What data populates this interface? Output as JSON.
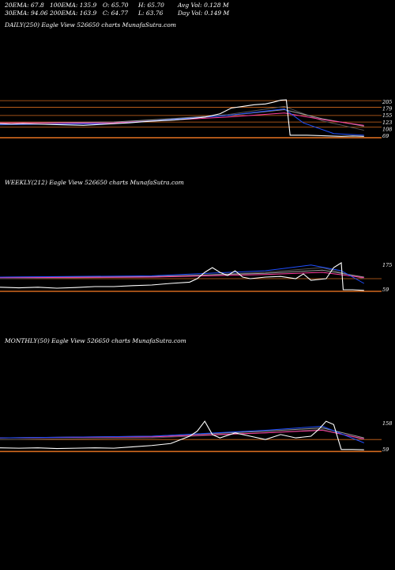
{
  "stats": {
    "row1": [
      "20EMA: 67.8",
      "100EMA: 135.9",
      "O: 65.70",
      "H: 65.70",
      "Avg Vol: 0.128  M"
    ],
    "row2": [
      "30EMA: 94.06",
      "200EMA: 163.9",
      "C: 64.77",
      "L: 63.76",
      "Day Vol: 0.149 M"
    ]
  },
  "colors": {
    "price": "#ffffff",
    "level": "#d2691e",
    "ema_blue": "#1f4fff",
    "ema_pink": "#ff3ca0",
    "ema_dark": "#555555",
    "ema_grey": "#999999"
  },
  "chart_data": [
    {
      "type": "line",
      "title": "DAILY(250) Eagle  View  526650  charts MunafaSutra.com",
      "y_labels": [
        "205",
        "179",
        "155",
        "123",
        "108",
        "69"
      ],
      "price_path": [
        [
          0,
          0.62
        ],
        [
          0.03,
          0.63
        ],
        [
          0.06,
          0.62
        ],
        [
          0.1,
          0.63
        ],
        [
          0.14,
          0.64
        ],
        [
          0.18,
          0.65
        ],
        [
          0.22,
          0.66
        ],
        [
          0.26,
          0.64
        ],
        [
          0.3,
          0.62
        ],
        [
          0.34,
          0.6
        ],
        [
          0.38,
          0.57
        ],
        [
          0.42,
          0.55
        ],
        [
          0.46,
          0.53
        ],
        [
          0.5,
          0.5
        ],
        [
          0.54,
          0.46
        ],
        [
          0.58,
          0.38
        ],
        [
          0.61,
          0.24
        ],
        [
          0.64,
          0.2
        ],
        [
          0.67,
          0.16
        ],
        [
          0.7,
          0.14
        ],
        [
          0.72,
          0.1
        ],
        [
          0.74,
          0.05
        ],
        [
          0.755,
          0.04
        ],
        [
          0.765,
          0.9
        ],
        [
          0.78,
          0.9
        ],
        [
          0.81,
          0.9
        ],
        [
          0.84,
          0.91
        ],
        [
          0.87,
          0.92
        ],
        [
          0.9,
          0.93
        ],
        [
          0.93,
          0.92
        ],
        [
          0.96,
          0.93
        ]
      ],
      "ema_lines": [
        {
          "color": "ema_dark",
          "path": [
            [
              0,
              0.65
            ],
            [
              0.3,
              0.6
            ],
            [
              0.6,
              0.4
            ],
            [
              0.75,
              0.2
            ],
            [
              0.85,
              0.55
            ],
            [
              0.96,
              0.78
            ]
          ]
        },
        {
          "color": "ema_grey",
          "path": [
            [
              0,
              0.6
            ],
            [
              0.3,
              0.58
            ],
            [
              0.6,
              0.42
            ],
            [
              0.75,
              0.28
            ],
            [
              0.85,
              0.5
            ],
            [
              0.96,
              0.68
            ]
          ]
        },
        {
          "color": "ema_pink",
          "path": [
            [
              0,
              0.6
            ],
            [
              0.3,
              0.6
            ],
            [
              0.6,
              0.46
            ],
            [
              0.75,
              0.36
            ],
            [
              0.85,
              0.52
            ],
            [
              0.96,
              0.66
            ]
          ]
        },
        {
          "color": "ema_blue",
          "path": [
            [
              0,
              0.64
            ],
            [
              0.3,
              0.62
            ],
            [
              0.6,
              0.42
            ],
            [
              0.75,
              0.26
            ],
            [
              0.8,
              0.6
            ],
            [
              0.88,
              0.86
            ],
            [
              0.96,
              0.9
            ]
          ]
        }
      ],
      "levels": [
        0.06,
        0.22,
        0.42,
        0.58,
        0.7,
        0.96
      ]
    },
    {
      "type": "line",
      "title": "WEEKLY(212) Eagle  View  526650  charts MunafaSutra.com",
      "y_labels": [
        "175",
        "59"
      ],
      "price_path": [
        [
          0,
          0.82
        ],
        [
          0.05,
          0.84
        ],
        [
          0.1,
          0.82
        ],
        [
          0.15,
          0.85
        ],
        [
          0.2,
          0.83
        ],
        [
          0.25,
          0.8
        ],
        [
          0.3,
          0.8
        ],
        [
          0.35,
          0.77
        ],
        [
          0.4,
          0.75
        ],
        [
          0.45,
          0.7
        ],
        [
          0.5,
          0.66
        ],
        [
          0.52,
          0.55
        ],
        [
          0.54,
          0.35
        ],
        [
          0.56,
          0.2
        ],
        [
          0.58,
          0.35
        ],
        [
          0.6,
          0.45
        ],
        [
          0.62,
          0.3
        ],
        [
          0.64,
          0.5
        ],
        [
          0.66,
          0.55
        ],
        [
          0.7,
          0.5
        ],
        [
          0.74,
          0.48
        ],
        [
          0.78,
          0.55
        ],
        [
          0.8,
          0.4
        ],
        [
          0.82,
          0.6
        ],
        [
          0.86,
          0.55
        ],
        [
          0.88,
          0.2
        ],
        [
          0.9,
          0.05
        ],
        [
          0.905,
          0.9
        ],
        [
          0.93,
          0.9
        ],
        [
          0.96,
          0.92
        ]
      ],
      "ema_lines": [
        {
          "color": "ema_dark",
          "path": [
            [
              0,
              0.55
            ],
            [
              0.4,
              0.5
            ],
            [
              0.7,
              0.35
            ],
            [
              0.85,
              0.2
            ],
            [
              0.96,
              0.55
            ]
          ]
        },
        {
          "color": "ema_grey",
          "path": [
            [
              0,
              0.5
            ],
            [
              0.4,
              0.48
            ],
            [
              0.7,
              0.38
            ],
            [
              0.85,
              0.28
            ],
            [
              0.96,
              0.5
            ]
          ]
        },
        {
          "color": "ema_pink",
          "path": [
            [
              0,
              0.52
            ],
            [
              0.4,
              0.5
            ],
            [
              0.7,
              0.42
            ],
            [
              0.85,
              0.35
            ],
            [
              0.96,
              0.52
            ]
          ]
        },
        {
          "color": "ema_blue",
          "path": [
            [
              0,
              0.5
            ],
            [
              0.4,
              0.46
            ],
            [
              0.7,
              0.3
            ],
            [
              0.82,
              0.12
            ],
            [
              0.9,
              0.3
            ],
            [
              0.96,
              0.7
            ]
          ]
        }
      ],
      "levels": [
        0.55,
        0.95
      ]
    },
    {
      "type": "line",
      "title": "MONTHLY(50) Eagle  View  526650  charts MunafaSutra.com",
      "y_labels": [
        "158",
        "59"
      ],
      "price_path": [
        [
          0,
          0.85
        ],
        [
          0.05,
          0.86
        ],
        [
          0.1,
          0.85
        ],
        [
          0.15,
          0.87
        ],
        [
          0.2,
          0.86
        ],
        [
          0.25,
          0.85
        ],
        [
          0.3,
          0.86
        ],
        [
          0.35,
          0.82
        ],
        [
          0.4,
          0.78
        ],
        [
          0.45,
          0.72
        ],
        [
          0.5,
          0.5
        ],
        [
          0.52,
          0.35
        ],
        [
          0.54,
          0.05
        ],
        [
          0.56,
          0.45
        ],
        [
          0.58,
          0.55
        ],
        [
          0.62,
          0.4
        ],
        [
          0.66,
          0.5
        ],
        [
          0.7,
          0.6
        ],
        [
          0.74,
          0.45
        ],
        [
          0.78,
          0.55
        ],
        [
          0.82,
          0.5
        ],
        [
          0.84,
          0.3
        ],
        [
          0.86,
          0.05
        ],
        [
          0.88,
          0.15
        ],
        [
          0.9,
          0.9
        ],
        [
          0.93,
          0.9
        ],
        [
          0.96,
          0.91
        ]
      ],
      "ema_lines": [
        {
          "color": "ema_dark",
          "path": [
            [
              0,
              0.6
            ],
            [
              0.4,
              0.55
            ],
            [
              0.7,
              0.4
            ],
            [
              0.85,
              0.3
            ],
            [
              0.96,
              0.6
            ]
          ]
        },
        {
          "color": "ema_grey",
          "path": [
            [
              0,
              0.55
            ],
            [
              0.4,
              0.5
            ],
            [
              0.7,
              0.35
            ],
            [
              0.85,
              0.25
            ],
            [
              0.96,
              0.55
            ]
          ]
        },
        {
          "color": "ema_pink",
          "path": [
            [
              0,
              0.55
            ],
            [
              0.4,
              0.52
            ],
            [
              0.7,
              0.4
            ],
            [
              0.85,
              0.32
            ],
            [
              0.96,
              0.58
            ]
          ]
        },
        {
          "color": "ema_blue",
          "path": [
            [
              0,
              0.55
            ],
            [
              0.4,
              0.5
            ],
            [
              0.7,
              0.32
            ],
            [
              0.85,
              0.2
            ],
            [
              0.96,
              0.7
            ]
          ]
        }
      ],
      "levels": [
        0.6,
        0.96
      ]
    }
  ]
}
